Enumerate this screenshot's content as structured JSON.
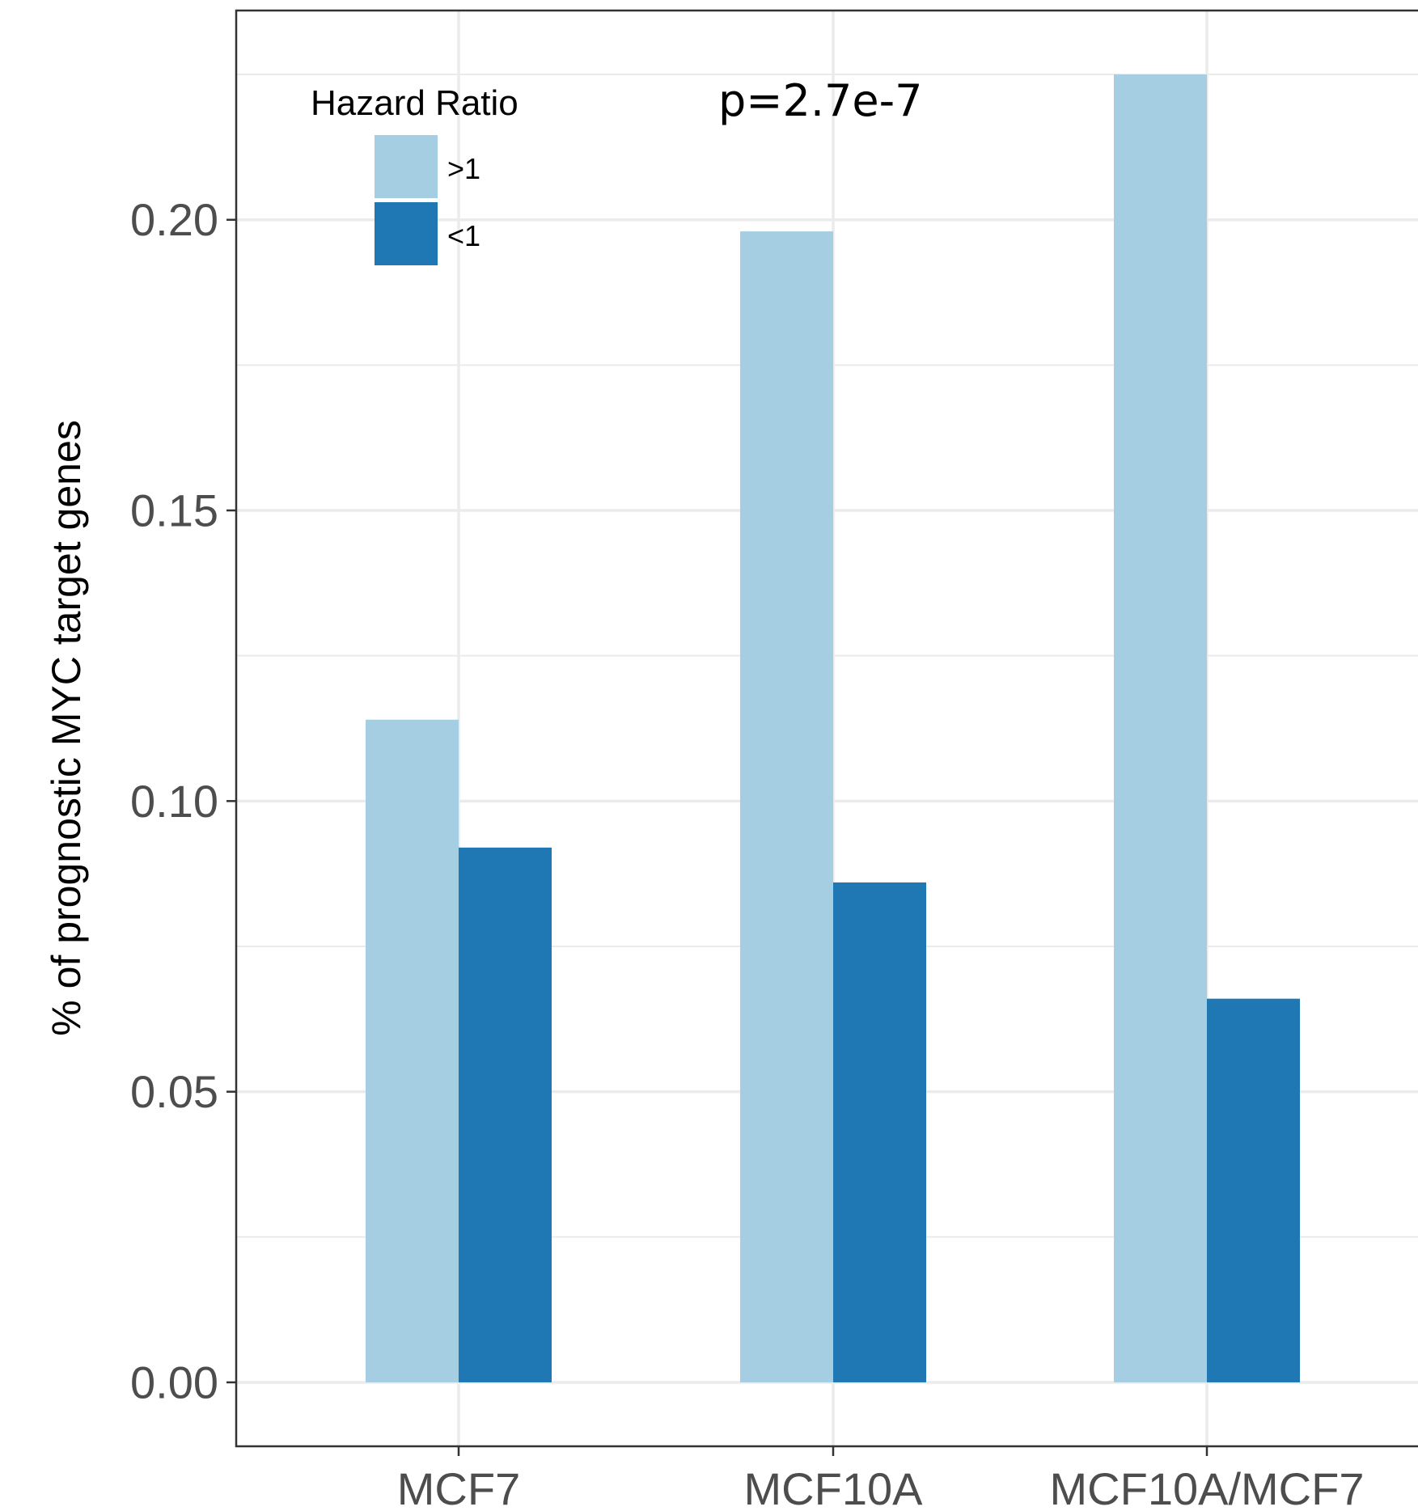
{
  "chart_data": {
    "type": "bar",
    "categories": [
      "MCF7",
      "MCF10A",
      "MCF10A/MCF7"
    ],
    "series": [
      {
        "name": ">1",
        "values": [
          0.114,
          0.198,
          0.225
        ],
        "color": "#a6cee3"
      },
      {
        "name": "<1",
        "values": [
          0.092,
          0.086,
          0.066
        ],
        "color": "#1f78b4"
      }
    ],
    "title": "",
    "xlabel": "",
    "ylabel": "% of prognostic MYC target genes",
    "ylim": [
      -0.011,
      0.236
    ],
    "yticks": [
      0.0,
      0.05,
      0.1,
      0.15,
      0.2
    ],
    "ytick_labels": [
      "0.00",
      "0.05",
      "0.10",
      "0.15",
      "0.20"
    ],
    "grid": true,
    "legend": {
      "title": "Hazard Ratio",
      "entries": [
        ">1",
        "<1"
      ],
      "position": "top-left"
    },
    "annotation": "p=2.7e-7"
  }
}
